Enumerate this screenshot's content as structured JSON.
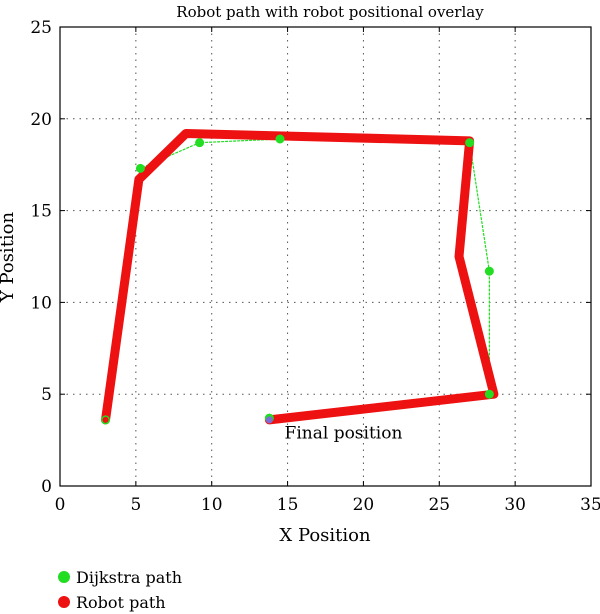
{
  "chart_data": {
    "type": "line",
    "title": "Robot path with robot positional overlay",
    "xlabel": "X Position",
    "ylabel": "Y Position",
    "xlim": [
      0,
      35
    ],
    "ylim": [
      0,
      25
    ],
    "xticks": [
      0,
      5,
      10,
      15,
      20,
      25,
      30,
      35
    ],
    "yticks": [
      0,
      5,
      10,
      15,
      20,
      25
    ],
    "grid": true,
    "legend_position": "bottom-left",
    "annotations": [
      {
        "text": "Final position",
        "x": 14.8,
        "y": 2.6
      }
    ],
    "series": [
      {
        "name": "Dijkstra path",
        "color": "#22dd22",
        "x": [
          3.0,
          5.3,
          9.2,
          14.5,
          27.0,
          28.3,
          28.3,
          13.8
        ],
        "y": [
          3.6,
          17.3,
          18.7,
          18.9,
          18.7,
          11.7,
          5.0,
          3.7
        ]
      },
      {
        "name": "Robot path",
        "color": "#ee1111",
        "x": [
          3.0,
          5.2,
          8.3,
          27.0,
          26.3,
          28.6,
          13.8
        ],
        "y": [
          3.6,
          16.7,
          19.2,
          18.8,
          12.5,
          5.0,
          3.6
        ]
      }
    ]
  }
}
